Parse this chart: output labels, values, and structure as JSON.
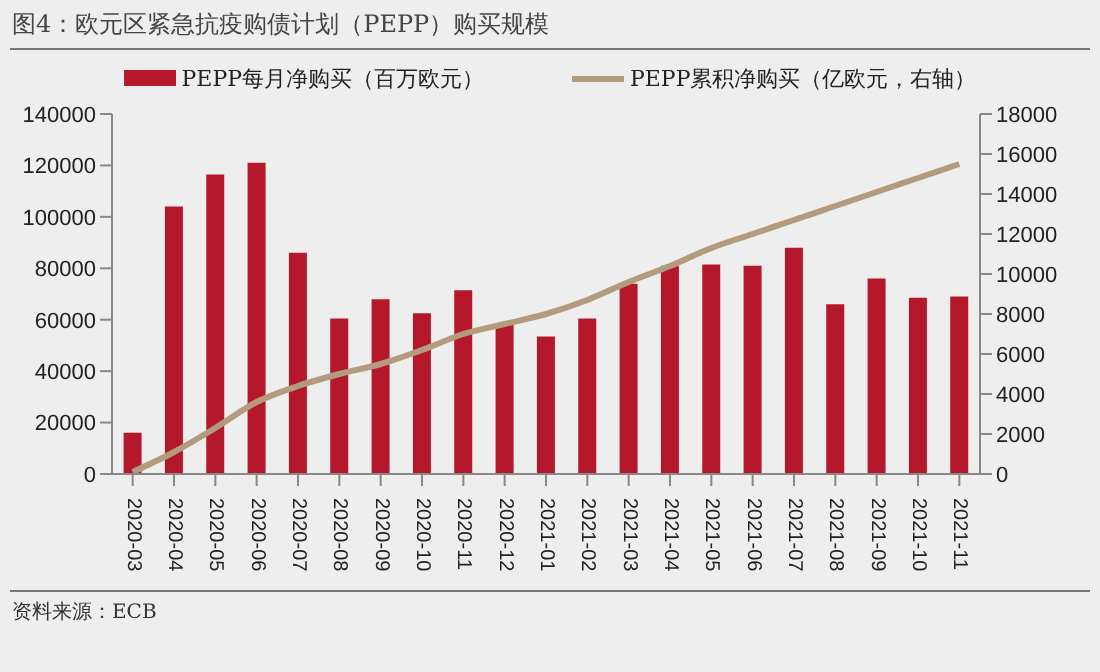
{
  "chart_data": {
    "type": "bar",
    "title": "图4：欧元区紧急抗疫购债计划（PEPP）购买规模",
    "categories": [
      "2020-03",
      "2020-04",
      "2020-05",
      "2020-06",
      "2020-07",
      "2020-08",
      "2020-09",
      "2020-10",
      "2020-11",
      "2020-12",
      "2021-01",
      "2021-02",
      "2021-03",
      "2021-04",
      "2021-05",
      "2021-06",
      "2021-07",
      "2021-08",
      "2021-09",
      "2021-10",
      "2021-11"
    ],
    "series": [
      {
        "name": "PEPP每月净购买（百万欧元）",
        "color": "#b5182b",
        "values": [
          16000,
          104000,
          116500,
          121000,
          86000,
          60500,
          68000,
          62500,
          71500,
          58000,
          53500,
          60500,
          74000,
          81000,
          81500,
          81000,
          88000,
          66000,
          76000,
          68500,
          69000
        ]
      },
      {
        "name": "PEPP累积净购买（亿欧元，右轴）",
        "type": "line",
        "axis": "y2",
        "color": "#b39b7e",
        "values": [
          100,
          1100,
          2300,
          3600,
          4400,
          5000,
          5500,
          6200,
          7000,
          7500,
          8000,
          8700,
          9600,
          10400,
          11300,
          12000,
          12700,
          13400,
          14100,
          14800,
          15500
        ]
      }
    ],
    "ylim": [
      0,
      140000
    ],
    "yticks": [
      0,
      20000,
      40000,
      60000,
      80000,
      100000,
      120000,
      140000
    ],
    "y2lim": [
      0,
      18000
    ],
    "y2ticks": [
      0,
      2000,
      4000,
      6000,
      8000,
      10000,
      12000,
      14000,
      16000,
      18000
    ],
    "legend": "top",
    "marker": "none",
    "line_style": "solid",
    "annotations": [
      "资料来源：ECB"
    ]
  }
}
